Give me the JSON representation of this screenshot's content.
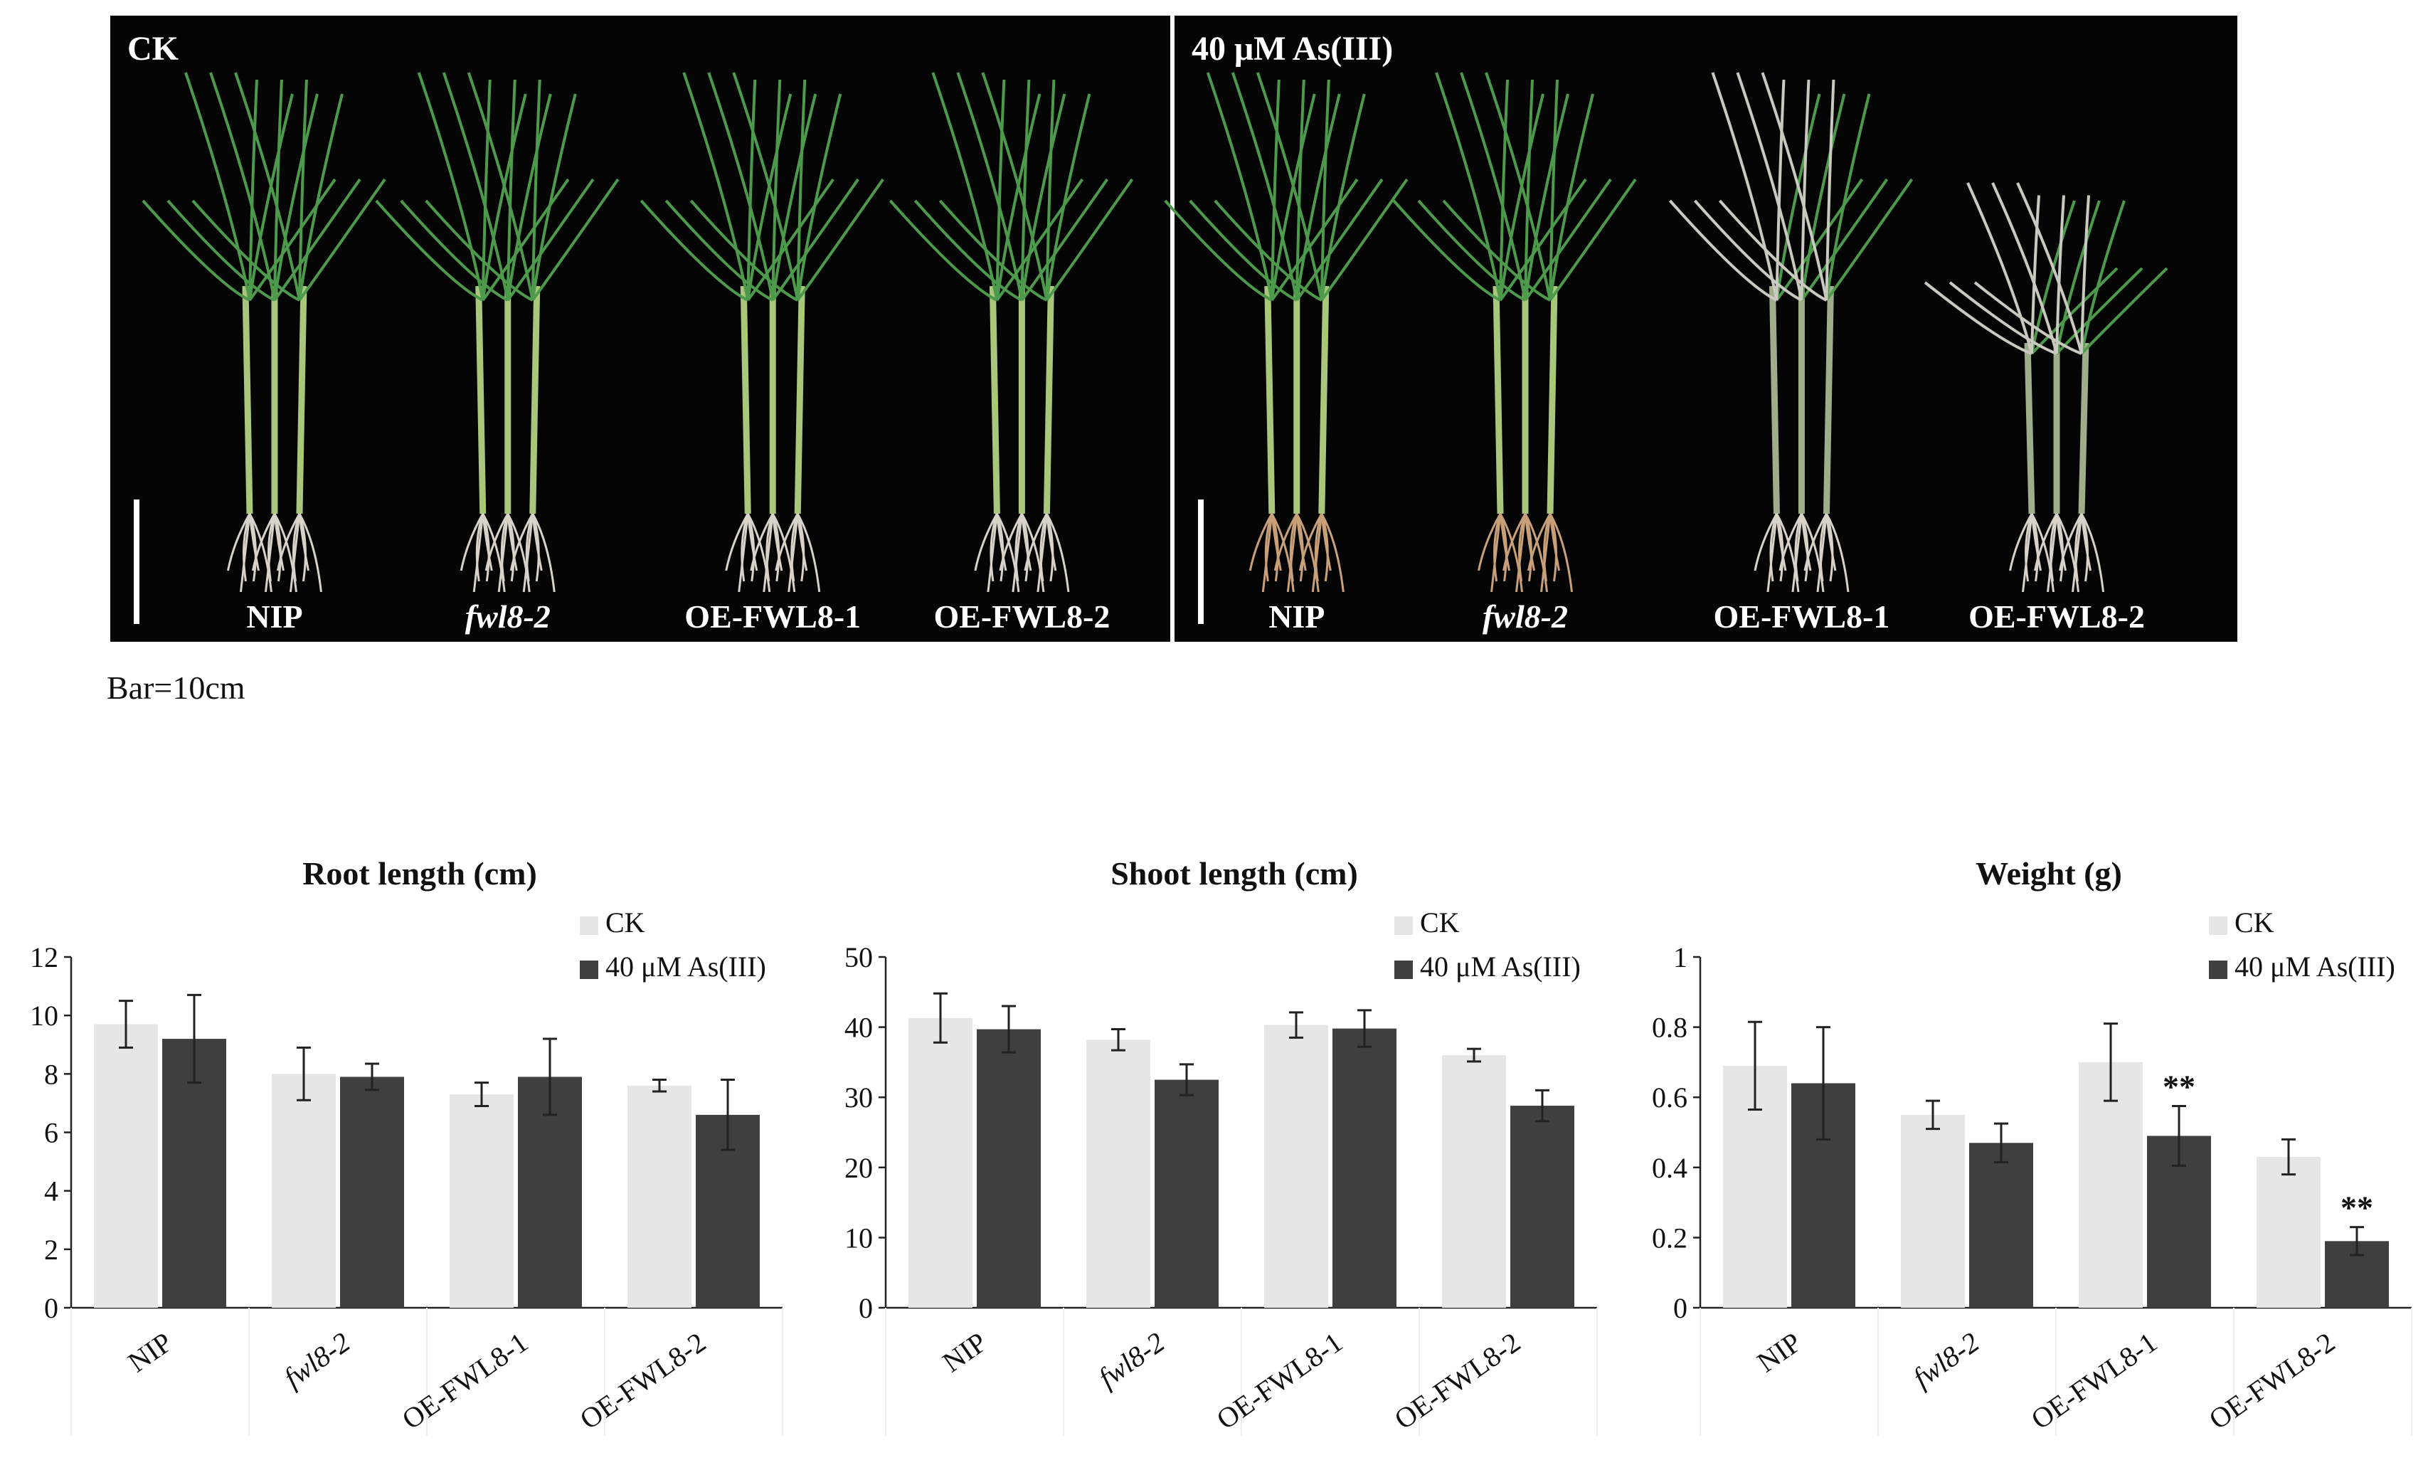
{
  "photo": {
    "panels": [
      {
        "title": "CK",
        "labels": [
          "NIP",
          "fwl8-2",
          "OE-FWL8-1",
          "OE-FWL8-2"
        ]
      },
      {
        "title": "40 μM As(III)",
        "labels": [
          "NIP",
          "fwl8-2",
          "OE-FWL8-1",
          "OE-FWL8-2"
        ]
      }
    ],
    "scale_bar_label": "Bar=10cm"
  },
  "colors": {
    "ck": "#e6e6e6",
    "as": "#3f3f3f",
    "photo_bg": "#050505",
    "leaf": "#4d9a4c",
    "root": "#d8d2c8"
  },
  "chart_data": [
    {
      "type": "bar",
      "title": "Root length (cm)",
      "categories": [
        "NIP",
        "fwl8-2",
        "OE-FWL8-1",
        "OE-FWL8-2"
      ],
      "series": [
        {
          "name": "CK",
          "values": [
            9.7,
            8.0,
            7.3,
            7.6
          ],
          "errors": [
            0.8,
            0.9,
            0.4,
            0.2
          ],
          "sig": [
            "",
            "",
            "",
            ""
          ]
        },
        {
          "name": "40 μM As(III)",
          "values": [
            9.2,
            7.9,
            7.9,
            6.6
          ],
          "errors": [
            1.5,
            0.45,
            1.3,
            1.2
          ],
          "sig": [
            "",
            "",
            "",
            ""
          ]
        }
      ],
      "ylim": [
        0,
        12
      ],
      "yticks": [
        0,
        2,
        4,
        6,
        8,
        10,
        12
      ],
      "ytick_labels": [
        "0",
        "2",
        "4",
        "6",
        "8",
        "10",
        "12"
      ],
      "legend": "top-right"
    },
    {
      "type": "bar",
      "title": "Shoot length (cm)",
      "categories": [
        "NIP",
        "fwl8-2",
        "OE-FWL8-1",
        "OE-FWL8-2"
      ],
      "series": [
        {
          "name": "CK",
          "values": [
            41.3,
            38.2,
            40.3,
            36.0
          ],
          "errors": [
            3.5,
            1.5,
            1.8,
            0.9
          ],
          "sig": [
            "",
            "",
            "",
            ""
          ]
        },
        {
          "name": "40 μM As(III)",
          "values": [
            39.7,
            32.5,
            39.8,
            28.8
          ],
          "errors": [
            3.3,
            2.2,
            2.6,
            2.2
          ],
          "sig": [
            "",
            "",
            "",
            ""
          ]
        }
      ],
      "ylim": [
        0,
        50
      ],
      "yticks": [
        0,
        10,
        20,
        30,
        40,
        50
      ],
      "ytick_labels": [
        "0",
        "10",
        "20",
        "30",
        "40",
        "50"
      ],
      "legend": "top-right"
    },
    {
      "type": "bar",
      "title": "Weight (g)",
      "categories": [
        "NIP",
        "fwl8-2",
        "OE-FWL8-1",
        "OE-FWL8-2"
      ],
      "series": [
        {
          "name": "CK",
          "values": [
            0.69,
            0.55,
            0.7,
            0.43
          ],
          "errors": [
            0.125,
            0.04,
            0.11,
            0.05
          ],
          "sig": [
            "",
            "",
            "",
            ""
          ]
        },
        {
          "name": "40 μM As(III)",
          "values": [
            0.64,
            0.47,
            0.49,
            0.19
          ],
          "errors": [
            0.16,
            0.055,
            0.085,
            0.04
          ],
          "sig": [
            "",
            "",
            "**",
            "**"
          ]
        }
      ],
      "ylim": [
        0,
        1
      ],
      "yticks": [
        0,
        0.2,
        0.4,
        0.6,
        0.8,
        1.0
      ],
      "ytick_labels": [
        "0",
        "0.2",
        "0.4",
        "0.6",
        "0.8",
        "1"
      ],
      "legend": "top-right"
    }
  ]
}
